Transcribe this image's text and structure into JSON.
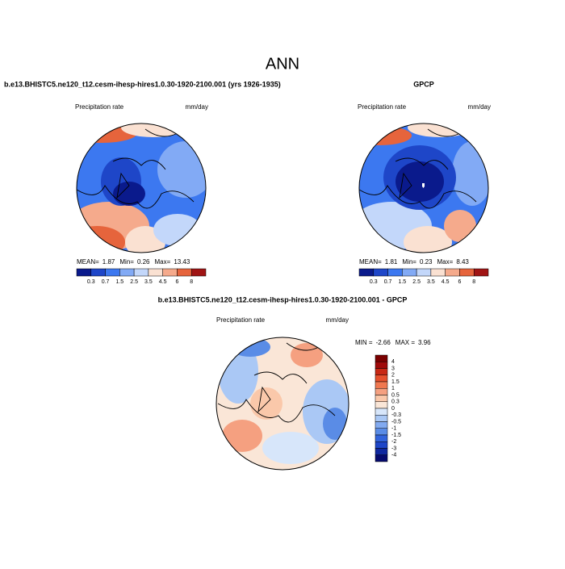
{
  "title": "ANN",
  "panels": [
    {
      "title": "b.e13.BHISTC5.ne120_t12.cesm-ihesp-hires1.0.30-1920-2100.001 (yrs 1926-1935)",
      "left_label": "Precipitation rate",
      "right_label": "mm/day",
      "stats": [
        {
          "label": "MEAN=",
          "value": 1.87
        },
        {
          "label": "Min=",
          "value": 0.26
        },
        {
          "label": "Max=",
          "value": 13.43
        }
      ],
      "colorbar": {
        "orientation": "horizontal",
        "levels": [
          0.3,
          0.7,
          1.5,
          2.5,
          3.5,
          4.5,
          6,
          8
        ],
        "colors": [
          "#0a1a8c",
          "#1e46c8",
          "#3c78f0",
          "#82aaf5",
          "#c3d7fa",
          "#fae1d2",
          "#f5aa8c",
          "#e6643c",
          "#a01414"
        ]
      }
    },
    {
      "title": "GPCP",
      "left_label": "Precipitation rate",
      "right_label": "mm/day",
      "stats": [
        {
          "label": "MEAN=",
          "value": 1.81
        },
        {
          "label": "Min=",
          "value": 0.23
        },
        {
          "label": "Max=",
          "value": 8.43
        }
      ],
      "colorbar": {
        "orientation": "horizontal",
        "levels": [
          0.3,
          0.7,
          1.5,
          2.5,
          3.5,
          4.5,
          6,
          8
        ],
        "colors": [
          "#0a1a8c",
          "#1e46c8",
          "#3c78f0",
          "#82aaf5",
          "#c3d7fa",
          "#fae1d2",
          "#f5aa8c",
          "#e6643c",
          "#a01414"
        ]
      }
    },
    {
      "title": "b.e13.BHISTC5.ne120_t12.cesm-ihesp-hires1.0.30-1920-2100.001 - GPCP",
      "left_label": "Precipitation rate",
      "right_label": "mm/day",
      "stats": [
        {
          "label": "MIN =",
          "value": -2.66
        },
        {
          "label": "MAX =",
          "value": 3.96
        }
      ],
      "colorbar": {
        "orientation": "vertical",
        "levels": [
          4,
          3,
          2,
          1.5,
          1,
          0.5,
          0.3,
          0,
          -0.3,
          -0.5,
          -1,
          -1.5,
          -2,
          -3,
          -4
        ],
        "colors": [
          "#7a0000",
          "#a00a0a",
          "#c82814",
          "#e6502d",
          "#f07850",
          "#f5a080",
          "#fac8aa",
          "#fae6d7",
          "#d7e6fa",
          "#aac8f5",
          "#82aaf0",
          "#5a8ce6",
          "#3264dc",
          "#1e46c8",
          "#0f28a0",
          "#050a6e"
        ]
      }
    }
  ]
}
